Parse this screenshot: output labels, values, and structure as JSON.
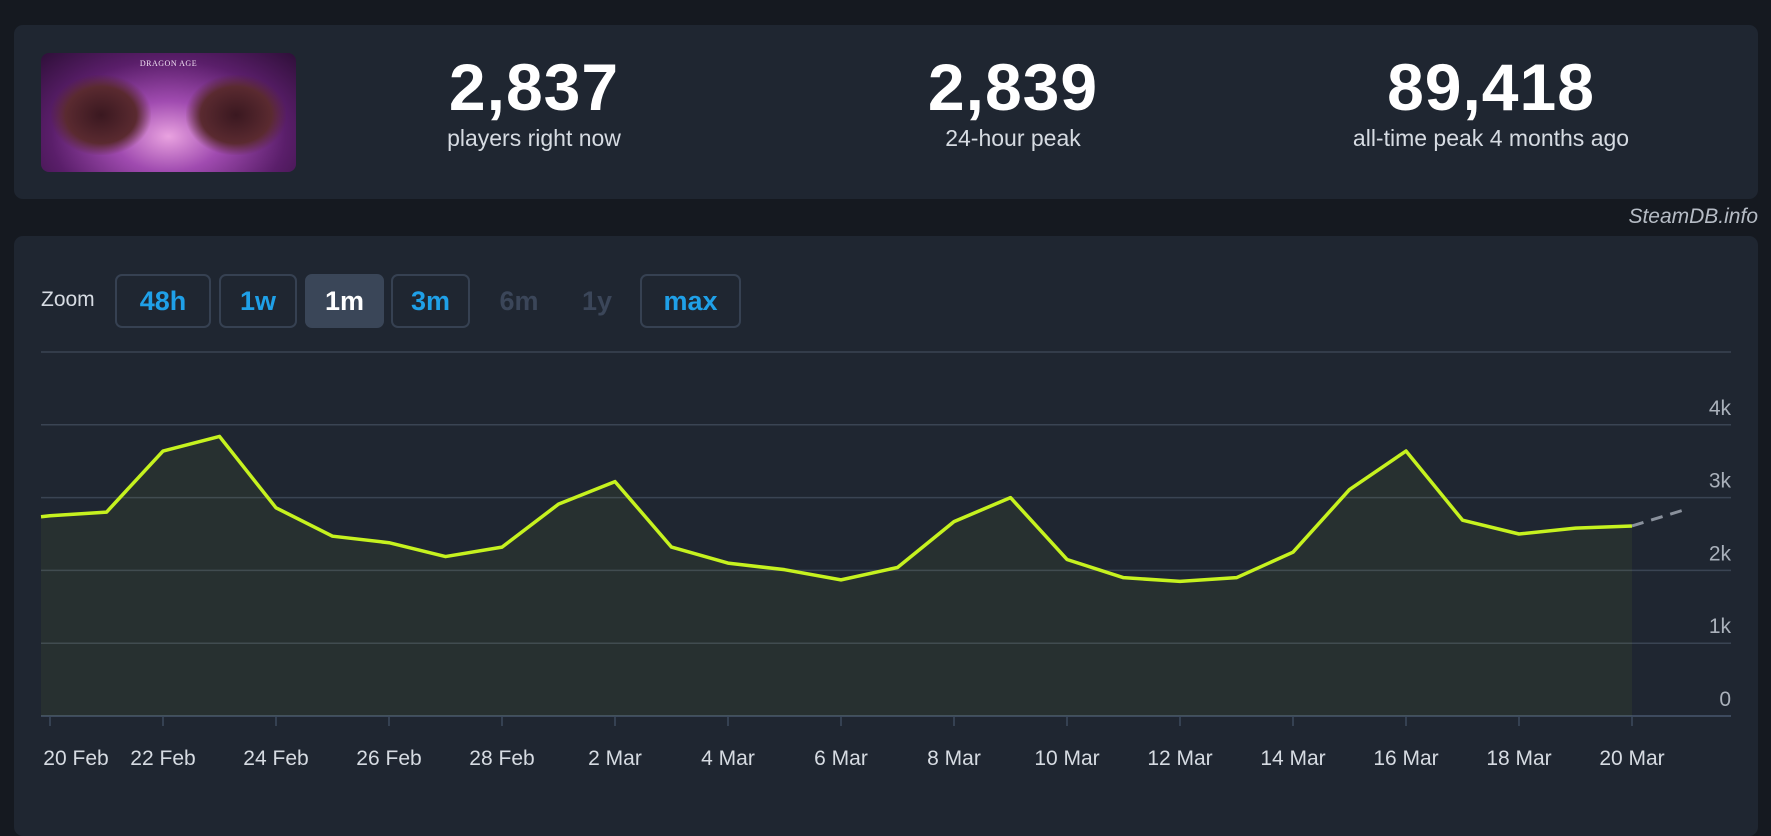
{
  "game": {
    "cover_logo": "DRAGON AGE"
  },
  "stats": [
    {
      "value": "2,837",
      "label": "players right now"
    },
    {
      "value": "2,839",
      "label": "24-hour peak"
    },
    {
      "value": "89,418",
      "label": "all-time peak 4 months ago"
    }
  ],
  "credit": "SteamDB.info",
  "zoom": {
    "label": "Zoom",
    "buttons": [
      {
        "label": "48h",
        "state": "enabled"
      },
      {
        "label": "1w",
        "state": "enabled"
      },
      {
        "label": "1m",
        "state": "active"
      },
      {
        "label": "3m",
        "state": "enabled"
      },
      {
        "label": "6m",
        "state": "disabled"
      },
      {
        "label": "1y",
        "state": "disabled"
      },
      {
        "label": "max",
        "state": "enabled"
      }
    ]
  },
  "colors": {
    "line": "#c6f21f",
    "accent": "#1fa0e8",
    "background": "#1f2631"
  },
  "chart_data": {
    "type": "line",
    "ylim": [
      0,
      5000
    ],
    "y_ticks": [
      "0",
      "1k",
      "2k",
      "3k",
      "4k"
    ],
    "y_tick_values": [
      0,
      1000,
      2000,
      3000,
      4000
    ],
    "x_tick_labels": [
      "20 Feb",
      "22 Feb",
      "24 Feb",
      "26 Feb",
      "28 Feb",
      "2 Mar",
      "4 Mar",
      "6 Mar",
      "8 Mar",
      "10 Mar",
      "12 Mar",
      "14 Mar",
      "16 Mar",
      "18 Mar",
      "20 Mar"
    ],
    "grid": true,
    "x": [
      "20 Feb",
      "21 Feb",
      "22 Feb",
      "23 Feb",
      "24 Feb",
      "25 Feb",
      "26 Feb",
      "27 Feb",
      "28 Feb",
      "1 Mar",
      "2 Mar",
      "3 Mar",
      "4 Mar",
      "5 Mar",
      "6 Mar",
      "7 Mar",
      "8 Mar",
      "9 Mar",
      "10 Mar",
      "11 Mar",
      "12 Mar",
      "13 Mar",
      "14 Mar",
      "15 Mar",
      "16 Mar",
      "17 Mar",
      "18 Mar",
      "19 Mar",
      "20 Mar"
    ],
    "values": [
      2750,
      2800,
      3640,
      3840,
      2860,
      2470,
      2380,
      2190,
      2320,
      2910,
      3220,
      2320,
      2100,
      2010,
      1870,
      2040,
      2670,
      3000,
      2150,
      1900,
      1850,
      1900,
      2250,
      3110,
      3640,
      2690,
      2500,
      2580,
      2610
    ],
    "projection": {
      "x": "21 Mar",
      "value": 2850
    }
  }
}
